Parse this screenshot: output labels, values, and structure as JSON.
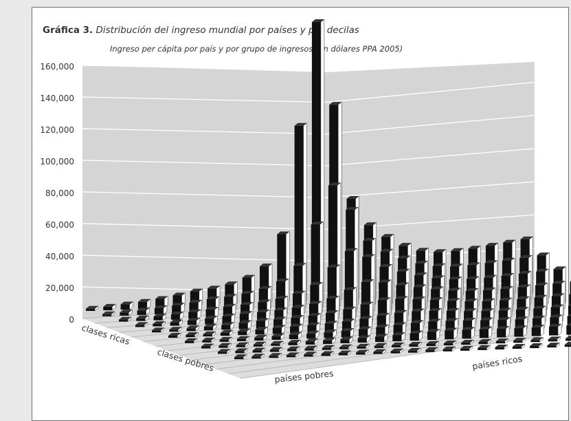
{
  "figure": {
    "label": "Gráfica 3.",
    "caption": "Distribución del ingreso mundial por países y por decilas"
  },
  "chart_data": {
    "type": "bar",
    "subtype": "3d-bar",
    "title": "Ingreso per cápita por país y por grupo de ingresos (en dólares PPA 2005)",
    "yticks": [
      "0",
      "20,000",
      "40,000",
      "60,000",
      "80,000",
      "100,000",
      "120,000",
      "140,000",
      "160,000"
    ],
    "ylim": [
      0,
      160000
    ],
    "x_axis_left": {
      "start_label": "clases ricas",
      "end_label": "clases pobres"
    },
    "x_axis_right": {
      "start_label": "países pobres",
      "end_label": "países ricos"
    },
    "peak_value": 147000,
    "grid": true,
    "colors": {
      "wall": "#d5d5d5",
      "floor": "#dddddd",
      "bar_face": "#111111",
      "bar_side": "#ffffff",
      "grid": "#ffffff"
    }
  }
}
